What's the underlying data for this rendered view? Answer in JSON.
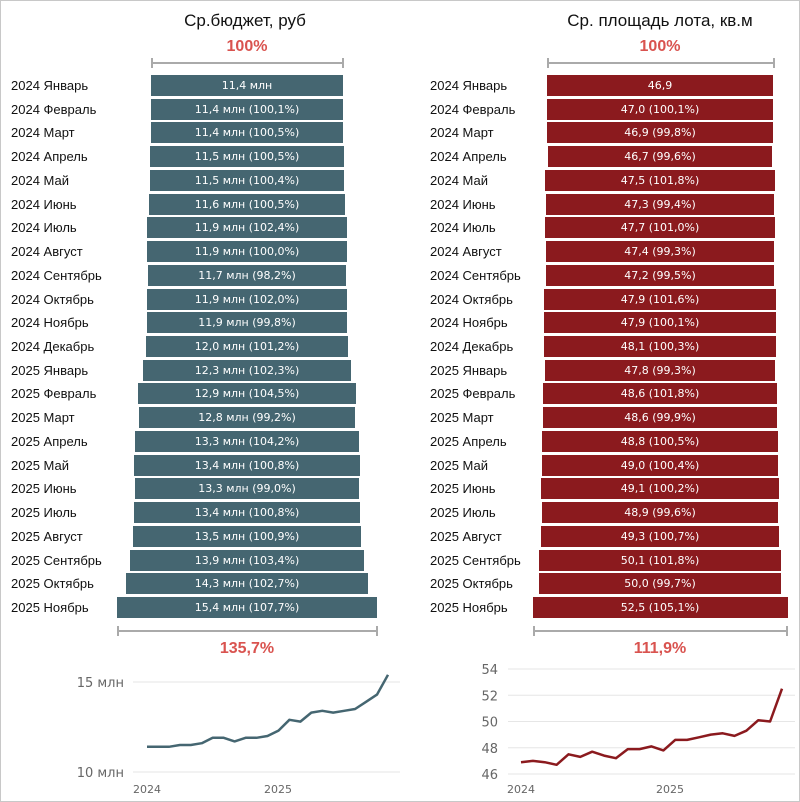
{
  "chart_data": [
    {
      "type": "bar",
      "orientation": "horizontal-centered",
      "title": "Ср.бюджет, руб",
      "start_pct_label": "100%",
      "end_pct_label": "135,7%",
      "color": "#456671",
      "categories": [
        "2024 Январь",
        "2024 Февраль",
        "2024 Март",
        "2024 Апрель",
        "2024 Май",
        "2024 Июнь",
        "2024 Июль",
        "2024 Август",
        "2024 Сентябрь",
        "2024 Октябрь",
        "2024 Ноябрь",
        "2024 Декабрь",
        "2025 Январь",
        "2025 Февраль",
        "2025 Март",
        "2025 Апрель",
        "2025 Май",
        "2025 Июнь",
        "2025 Июль",
        "2025 Август",
        "2025 Сентябрь",
        "2025 Октябрь",
        "2025 Ноябрь"
      ],
      "values": [
        11.4,
        11.4,
        11.4,
        11.5,
        11.5,
        11.6,
        11.9,
        11.9,
        11.7,
        11.9,
        11.9,
        12.0,
        12.3,
        12.9,
        12.8,
        13.3,
        13.4,
        13.3,
        13.4,
        13.5,
        13.9,
        14.3,
        15.4
      ],
      "unit": "млн",
      "bar_labels": [
        "11,4 млн",
        "11,4 млн (100,1%)",
        "11,4 млн (100,5%)",
        "11,5 млн (100,5%)",
        "11,5 млн (100,4%)",
        "11,6 млн (100,5%)",
        "11,9 млн (102,4%)",
        "11,9 млн (100,0%)",
        "11,7 млн (98,2%)",
        "11,9 млн (102,0%)",
        "11,9 млн (99,8%)",
        "12,0 млн (101,2%)",
        "12,3 млн (102,3%)",
        "12,9 млн (104,5%)",
        "12,8 млн (99,2%)",
        "13,3 млн (104,2%)",
        "13,4 млн (100,8%)",
        "13,3 млн (99,0%)",
        "13,4 млн (100,8%)",
        "13,5 млн (100,9%)",
        "13,9 млн (103,4%)",
        "14,3 млн (102,7%)",
        "15,4 млн (107,7%)"
      ],
      "line": {
        "type": "line",
        "y_ticks": [
          10,
          15
        ],
        "y_tick_labels": [
          "10 млн",
          "15 млн"
        ],
        "ylim": [
          10,
          15
        ],
        "x_tick_labels": [
          "2024",
          "2025"
        ],
        "grid": true
      }
    },
    {
      "type": "bar",
      "orientation": "horizontal-centered",
      "title": "Ср. площадь лота, кв.м",
      "start_pct_label": "100%",
      "end_pct_label": "111,9%",
      "color": "#8b1a1e",
      "categories": [
        "2024 Январь",
        "2024 Февраль",
        "2024 Март",
        "2024 Апрель",
        "2024 Май",
        "2024 Июнь",
        "2024 Июль",
        "2024 Август",
        "2024 Сентябрь",
        "2024 Октябрь",
        "2024 Ноябрь",
        "2024 Декабрь",
        "2025 Январь",
        "2025 Февраль",
        "2025 Март",
        "2025 Апрель",
        "2025 Май",
        "2025 Июнь",
        "2025 Июль",
        "2025 Август",
        "2025 Сентябрь",
        "2025 Октябрь",
        "2025 Ноябрь"
      ],
      "values": [
        46.9,
        47.0,
        46.9,
        46.7,
        47.5,
        47.3,
        47.7,
        47.4,
        47.2,
        47.9,
        47.9,
        48.1,
        47.8,
        48.6,
        48.6,
        48.8,
        49.0,
        49.1,
        48.9,
        49.3,
        50.1,
        50.0,
        52.5
      ],
      "unit": "кв.м",
      "bar_labels": [
        "46,9",
        "47,0 (100,1%)",
        "46,9 (99,8%)",
        "46,7 (99,6%)",
        "47,5 (101,8%)",
        "47,3 (99,4%)",
        "47,7 (101,0%)",
        "47,4 (99,3%)",
        "47,2 (99,5%)",
        "47,9 (101,6%)",
        "47,9 (100,1%)",
        "48,1 (100,3%)",
        "47,8 (99,3%)",
        "48,6 (101,8%)",
        "48,6 (99,9%)",
        "48,8 (100,5%)",
        "49,0 (100,4%)",
        "49,1 (100,2%)",
        "48,9 (99,6%)",
        "49,3 (100,7%)",
        "50,1 (101,8%)",
        "50,0 (99,7%)",
        "52,5 (105,1%)"
      ],
      "line": {
        "type": "line",
        "y_ticks": [
          46,
          48,
          50,
          52,
          54
        ],
        "y_tick_labels": [
          "46",
          "48",
          "50",
          "52",
          "54"
        ],
        "ylim": [
          46,
          54
        ],
        "x_tick_labels": [
          "2024",
          "2025"
        ],
        "grid": true
      }
    }
  ]
}
